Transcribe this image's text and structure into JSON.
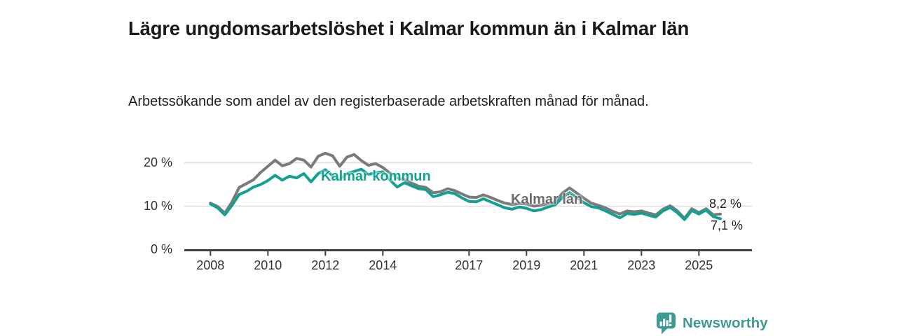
{
  "header": {
    "title": "Lägre ungdomsarbetslöshet i Kalmar kommun än i Kalmar län",
    "subtitle": "Arbetssökande som andel av den registerbaserade arbetskraften månad för månad."
  },
  "chart_data": {
    "type": "line",
    "title": "Lägre ungdomsarbetslöshet i Kalmar kommun än i Kalmar län",
    "xlabel": "",
    "ylabel": "",
    "y_unit": "%",
    "ylim": [
      0,
      24
    ],
    "grid": "horizontal",
    "legend_position": "inline-labels",
    "y_ticks": [
      {
        "value": 0,
        "label": "0 %"
      },
      {
        "value": 10,
        "label": "10 %"
      },
      {
        "value": 20,
        "label": "20 %"
      }
    ],
    "x_ticks": [
      {
        "value": 2008,
        "label": "2008"
      },
      {
        "value": 2010,
        "label": "2010"
      },
      {
        "value": 2012,
        "label": "2012"
      },
      {
        "value": 2014,
        "label": "2014"
      },
      {
        "value": 2017,
        "label": "2017"
      },
      {
        "value": 2019,
        "label": "2019"
      },
      {
        "value": 2021,
        "label": "2021"
      },
      {
        "value": 2023,
        "label": "2023"
      },
      {
        "value": 2025,
        "label": "2025"
      }
    ],
    "x": [
      2008.0,
      2008.25,
      2008.5,
      2008.75,
      2009.0,
      2009.25,
      2009.5,
      2009.75,
      2010.0,
      2010.25,
      2010.5,
      2010.75,
      2011.0,
      2011.25,
      2011.5,
      2011.75,
      2012.0,
      2012.25,
      2012.5,
      2012.75,
      2013.0,
      2013.25,
      2013.5,
      2013.75,
      2014.0,
      2014.25,
      2014.5,
      2014.75,
      2015.0,
      2015.25,
      2015.5,
      2015.75,
      2016.0,
      2016.25,
      2016.5,
      2016.75,
      2017.0,
      2017.25,
      2017.5,
      2017.75,
      2018.0,
      2018.25,
      2018.5,
      2018.75,
      2019.0,
      2019.25,
      2019.5,
      2019.75,
      2020.0,
      2020.25,
      2020.5,
      2020.75,
      2021.0,
      2021.25,
      2021.5,
      2021.75,
      2022.0,
      2022.25,
      2022.5,
      2022.75,
      2023.0,
      2023.25,
      2023.5,
      2023.75,
      2024.0,
      2024.25,
      2024.5,
      2024.75,
      2025.0,
      2025.25,
      2025.5,
      2025.75
    ],
    "series": [
      {
        "name": "Kalmar län",
        "color": "#7a7a7a",
        "label_color": "#6b6b6b",
        "end_label": "8,2 %",
        "end_value": 8.2,
        "values": [
          10.7,
          9.9,
          8.4,
          11.0,
          14.3,
          15.2,
          16.1,
          17.8,
          19.2,
          20.6,
          19.3,
          19.8,
          21.0,
          20.6,
          19.0,
          21.5,
          22.2,
          21.6,
          19.2,
          21.3,
          21.9,
          20.5,
          19.4,
          19.8,
          18.9,
          17.6,
          16.5,
          16.2,
          15.3,
          14.6,
          14.3,
          13.1,
          13.3,
          14.0,
          13.6,
          12.8,
          12.1,
          12.0,
          12.6,
          12.0,
          11.3,
          10.7,
          10.4,
          10.6,
          10.5,
          10.0,
          10.2,
          10.6,
          11.0,
          13.0,
          14.2,
          13.0,
          11.8,
          10.7,
          10.2,
          9.6,
          8.8,
          8.2,
          8.9,
          8.7,
          8.9,
          8.4,
          8.0,
          9.3,
          10.1,
          8.9,
          7.2,
          9.4,
          8.5,
          9.4,
          8.0,
          8.2
        ]
      },
      {
        "name": "Kalmar kommun",
        "color": "#14a090",
        "label_color": "#12a291",
        "end_label": "7,1 %",
        "end_value": 7.1,
        "values": [
          10.5,
          9.6,
          8.0,
          10.2,
          12.7,
          13.4,
          14.4,
          15.0,
          15.9,
          17.1,
          16.0,
          16.9,
          16.5,
          17.5,
          15.6,
          17.5,
          18.4,
          17.0,
          16.2,
          17.5,
          18.0,
          18.5,
          17.3,
          17.7,
          17.9,
          16.0,
          14.4,
          15.4,
          14.7,
          14.0,
          13.8,
          12.2,
          12.6,
          13.2,
          12.9,
          11.9,
          11.1,
          11.0,
          11.7,
          11.0,
          10.3,
          9.6,
          9.3,
          9.8,
          9.5,
          8.9,
          9.2,
          9.8,
          10.3,
          12.0,
          13.1,
          12.0,
          10.8,
          9.9,
          9.6,
          8.9,
          8.1,
          7.3,
          8.3,
          8.1,
          8.4,
          7.9,
          7.5,
          8.9,
          9.7,
          8.5,
          6.9,
          9.0,
          8.2,
          9.1,
          7.6,
          7.1
        ]
      }
    ],
    "colors": {
      "grid": "#dcdcdc",
      "axis": "#3f3f3f",
      "tick_text": "#333333"
    }
  },
  "footer": {
    "brand": "Newsworthy",
    "brand_color": "#3c9b93"
  }
}
